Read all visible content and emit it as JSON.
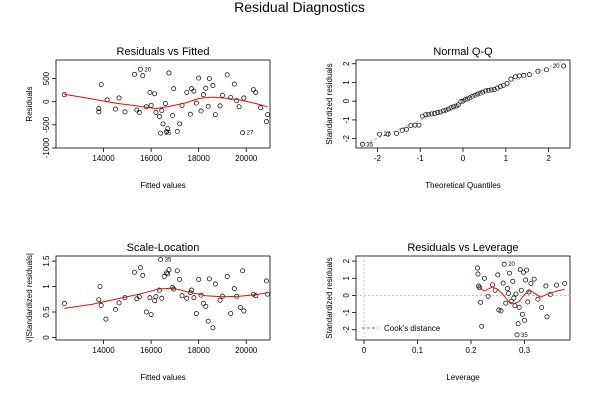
{
  "figure": {
    "title": "Residual Diagnostics"
  },
  "chart_data": [
    {
      "type": "scatter",
      "title": "Residuals vs Fitted",
      "xlabel": "Fitted values",
      "ylabel": "Residuals",
      "xlim": [
        12000,
        21000
      ],
      "ylim": [
        -1000,
        900
      ],
      "xticks": [
        14000,
        16000,
        18000,
        20000
      ],
      "yticks": [
        -1000,
        -500,
        0,
        500
      ],
      "grid": false,
      "points": [
        [
          12350,
          150
        ],
        [
          13800,
          -150
        ],
        [
          13800,
          -220
        ],
        [
          13900,
          370
        ],
        [
          14150,
          40
        ],
        [
          14500,
          -160
        ],
        [
          14650,
          80
        ],
        [
          14900,
          -220
        ],
        [
          15300,
          590
        ],
        [
          15400,
          -180
        ],
        [
          15500,
          -230
        ],
        [
          15550,
          700
        ],
        [
          15650,
          560
        ],
        [
          15800,
          -110
        ],
        [
          15950,
          200
        ],
        [
          16000,
          -80
        ],
        [
          16150,
          170
        ],
        [
          16200,
          -230
        ],
        [
          16350,
          -320
        ],
        [
          16400,
          -680
        ],
        [
          16450,
          -190
        ],
        [
          16500,
          -480
        ],
        [
          16600,
          -40
        ],
        [
          16650,
          -650
        ],
        [
          16700,
          -580
        ],
        [
          16750,
          620
        ],
        [
          16900,
          -300
        ],
        [
          16950,
          280
        ],
        [
          17100,
          -640
        ],
        [
          17200,
          -480
        ],
        [
          17300,
          -80
        ],
        [
          17500,
          200
        ],
        [
          17650,
          -270
        ],
        [
          17700,
          280
        ],
        [
          17800,
          230
        ],
        [
          17900,
          -30
        ],
        [
          18000,
          510
        ],
        [
          18100,
          -200
        ],
        [
          18200,
          150
        ],
        [
          18300,
          290
        ],
        [
          18400,
          -100
        ],
        [
          18450,
          500
        ],
        [
          18600,
          350
        ],
        [
          18700,
          -280
        ],
        [
          18900,
          -90
        ],
        [
          19000,
          140
        ],
        [
          19200,
          580
        ],
        [
          19350,
          90
        ],
        [
          19500,
          380
        ],
        [
          19600,
          20
        ],
        [
          19700,
          -110
        ],
        [
          19850,
          -670
        ],
        [
          19900,
          80
        ],
        [
          20300,
          260
        ],
        [
          20400,
          200
        ],
        [
          20600,
          -130
        ],
        [
          20850,
          -430
        ],
        [
          20900,
          -280
        ]
      ],
      "smooth_line": [
        [
          12350,
          160
        ],
        [
          13500,
          60
        ],
        [
          14500,
          -30
        ],
        [
          15500,
          -100
        ],
        [
          16200,
          -150
        ],
        [
          16800,
          -100
        ],
        [
          17500,
          -20
        ],
        [
          18000,
          70
        ],
        [
          18600,
          100
        ],
        [
          19200,
          70
        ],
        [
          19800,
          30
        ],
        [
          20400,
          -40
        ],
        [
          20900,
          -110
        ]
      ],
      "labeled_points": [
        {
          "label": "20",
          "x": 15550,
          "y": 700
        },
        {
          "label": "35",
          "x": 16400,
          "y": -680
        },
        {
          "label": "27",
          "x": 19850,
          "y": -670
        }
      ]
    },
    {
      "type": "scatter",
      "title": "Normal Q-Q",
      "xlabel": "Theoretical Quantiles",
      "ylabel": "Standardized residuals",
      "xlim": [
        -2.5,
        2.5
      ],
      "ylim": [
        -2.5,
        2.2
      ],
      "xticks": [
        -2,
        -1,
        0,
        1,
        2
      ],
      "yticks": [
        -2,
        -1,
        0,
        1,
        2
      ],
      "grid": false,
      "points": [
        [
          -2.35,
          -2.3
        ],
        [
          -1.95,
          -1.76
        ],
        [
          -1.75,
          -1.76
        ],
        [
          -1.55,
          -1.72
        ],
        [
          -1.42,
          -1.55
        ],
        [
          -1.32,
          -1.5
        ],
        [
          -1.22,
          -1.3
        ],
        [
          -1.12,
          -1.28
        ],
        [
          -1.03,
          -1.28
        ],
        [
          -0.95,
          -0.8
        ],
        [
          -0.87,
          -0.72
        ],
        [
          -0.8,
          -0.7
        ],
        [
          -0.73,
          -0.68
        ],
        [
          -0.66,
          -0.65
        ],
        [
          -0.59,
          -0.6
        ],
        [
          -0.53,
          -0.58
        ],
        [
          -0.46,
          -0.52
        ],
        [
          -0.4,
          -0.48
        ],
        [
          -0.34,
          -0.42
        ],
        [
          -0.28,
          -0.35
        ],
        [
          -0.22,
          -0.3
        ],
        [
          -0.16,
          -0.26
        ],
        [
          -0.11,
          -0.2
        ],
        [
          -0.05,
          -0.02
        ],
        [
          0.0,
          0.0
        ],
        [
          0.05,
          0.08
        ],
        [
          0.11,
          0.12
        ],
        [
          0.16,
          0.18
        ],
        [
          0.22,
          0.26
        ],
        [
          0.28,
          0.32
        ],
        [
          0.34,
          0.38
        ],
        [
          0.4,
          0.42
        ],
        [
          0.46,
          0.48
        ],
        [
          0.53,
          0.55
        ],
        [
          0.59,
          0.58
        ],
        [
          0.66,
          0.6
        ],
        [
          0.73,
          0.62
        ],
        [
          0.8,
          0.7
        ],
        [
          0.87,
          0.78
        ],
        [
          0.95,
          0.85
        ],
        [
          1.03,
          0.95
        ],
        [
          1.12,
          1.18
        ],
        [
          1.22,
          1.3
        ],
        [
          1.32,
          1.35
        ],
        [
          1.42,
          1.38
        ],
        [
          1.55,
          1.42
        ],
        [
          1.75,
          1.6
        ],
        [
          1.95,
          1.68
        ],
        [
          2.35,
          1.88
        ]
      ],
      "labeled_points": [
        {
          "label": "35",
          "x": -2.35,
          "y": -2.3
        },
        {
          "label": "27",
          "x": -1.95,
          "y": -1.76
        },
        {
          "label": "20",
          "x": 2.35,
          "y": 1.88
        }
      ]
    },
    {
      "type": "scatter",
      "title": "Scale-Location",
      "xlabel": "Fitted values",
      "ylabel": "√|Standardized residuals|",
      "xlim": [
        12000,
        21000
      ],
      "ylim": [
        -0.05,
        1.6
      ],
      "xticks": [
        14000,
        16000,
        18000,
        20000
      ],
      "yticks": [
        0.0,
        0.5,
        1.0,
        1.5
      ],
      "grid": false,
      "points": [
        [
          12350,
          0.67
        ],
        [
          13800,
          0.74
        ],
        [
          13850,
          1.0
        ],
        [
          13900,
          0.63
        ],
        [
          14100,
          0.36
        ],
        [
          14500,
          0.55
        ],
        [
          14650,
          0.68
        ],
        [
          14900,
          0.78
        ],
        [
          15300,
          1.28
        ],
        [
          15400,
          0.76
        ],
        [
          15500,
          0.8
        ],
        [
          15550,
          1.37
        ],
        [
          15650,
          1.22
        ],
        [
          15800,
          0.5
        ],
        [
          15950,
          0.78
        ],
        [
          16000,
          0.45
        ],
        [
          16150,
          0.72
        ],
        [
          16200,
          0.8
        ],
        [
          16350,
          0.93
        ],
        [
          16400,
          1.53
        ],
        [
          16450,
          0.77
        ],
        [
          16550,
          1.2
        ],
        [
          16650,
          1.27
        ],
        [
          16700,
          1.25
        ],
        [
          16750,
          1.33
        ],
        [
          16900,
          0.98
        ],
        [
          16950,
          0.95
        ],
        [
          17100,
          1.31
        ],
        [
          17200,
          1.14
        ],
        [
          17300,
          0.82
        ],
        [
          17500,
          0.77
        ],
        [
          17650,
          0.88
        ],
        [
          17700,
          0.93
        ],
        [
          17800,
          0.78
        ],
        [
          17900,
          0.47
        ],
        [
          18000,
          1.14
        ],
        [
          18100,
          0.83
        ],
        [
          18200,
          0.67
        ],
        [
          18300,
          0.61
        ],
        [
          18400,
          0.32
        ],
        [
          18450,
          1.15
        ],
        [
          18600,
          0.19
        ],
        [
          18700,
          1.05
        ],
        [
          18900,
          0.73
        ],
        [
          19000,
          0.81
        ],
        [
          19200,
          1.2
        ],
        [
          19350,
          0.47
        ],
        [
          19500,
          0.96
        ],
        [
          19600,
          0.81
        ],
        [
          19750,
          0.59
        ],
        [
          19850,
          1.31
        ],
        [
          19900,
          0.52
        ],
        [
          20300,
          0.85
        ],
        [
          20400,
          0.82
        ],
        [
          20850,
          1.11
        ],
        [
          20900,
          0.85
        ]
      ],
      "smooth_line": [
        [
          12350,
          0.57
        ],
        [
          13500,
          0.65
        ],
        [
          14500,
          0.75
        ],
        [
          15500,
          0.85
        ],
        [
          16300,
          0.95
        ],
        [
          16900,
          0.97
        ],
        [
          17500,
          0.9
        ],
        [
          18300,
          0.82
        ],
        [
          19000,
          0.8
        ],
        [
          19700,
          0.81
        ],
        [
          20400,
          0.84
        ],
        [
          20900,
          0.88
        ]
      ],
      "labeled_points": [
        {
          "label": "35",
          "x": 16400,
          "y": 1.53
        }
      ]
    },
    {
      "type": "scatter",
      "title": "Residuals vs Leverage",
      "xlabel": "Leverage",
      "ylabel": "Standardized residuals",
      "xlim": [
        -0.015,
        0.385
      ],
      "ylim": [
        -2.6,
        2.3
      ],
      "xticks": [
        0.0,
        0.1,
        0.2,
        0.3
      ],
      "yticks": [
        -2,
        -1,
        0,
        1,
        2
      ],
      "grid": false,
      "reference_lines": {
        "horizontal": 0,
        "vertical": 0
      },
      "legend": {
        "position": "bottom-left",
        "entries": [
          "Cook's distance"
        ]
      },
      "points": [
        [
          0.212,
          1.6
        ],
        [
          0.213,
          1.25
        ],
        [
          0.214,
          0.55
        ],
        [
          0.216,
          0.45
        ],
        [
          0.218,
          -0.4
        ],
        [
          0.22,
          -1.8
        ],
        [
          0.225,
          1.0
        ],
        [
          0.232,
          -0.05
        ],
        [
          0.24,
          0.62
        ],
        [
          0.245,
          0.3
        ],
        [
          0.25,
          1.2
        ],
        [
          0.252,
          -0.85
        ],
        [
          0.256,
          -0.9
        ],
        [
          0.26,
          0.72
        ],
        [
          0.262,
          1.82
        ],
        [
          0.265,
          -0.45
        ],
        [
          0.268,
          0.4
        ],
        [
          0.27,
          0.12
        ],
        [
          0.272,
          1.3
        ],
        [
          0.275,
          -0.35
        ],
        [
          0.278,
          0.82
        ],
        [
          0.28,
          -0.15
        ],
        [
          0.282,
          -0.6
        ],
        [
          0.284,
          0.08
        ],
        [
          0.286,
          -2.3
        ],
        [
          0.288,
          -1.65
        ],
        [
          0.29,
          -0.7
        ],
        [
          0.292,
          1.5
        ],
        [
          0.294,
          0.3
        ],
        [
          0.296,
          -1.1
        ],
        [
          0.298,
          1.35
        ],
        [
          0.3,
          -1.45
        ],
        [
          0.302,
          0.9
        ],
        [
          0.304,
          1.48
        ],
        [
          0.306,
          -0.38
        ],
        [
          0.308,
          0.2
        ],
        [
          0.312,
          0.7
        ],
        [
          0.318,
          0.95
        ],
        [
          0.325,
          -0.22
        ],
        [
          0.332,
          -0.7
        ],
        [
          0.34,
          0.55
        ],
        [
          0.342,
          -1.25
        ],
        [
          0.348,
          0.05
        ],
        [
          0.36,
          0.6
        ],
        [
          0.375,
          0.7
        ]
      ],
      "smooth_line": [
        [
          0.212,
          0.55
        ],
        [
          0.225,
          0.25
        ],
        [
          0.24,
          0.5
        ],
        [
          0.25,
          0.35
        ],
        [
          0.26,
          0.05
        ],
        [
          0.27,
          -0.35
        ],
        [
          0.28,
          -0.5
        ],
        [
          0.29,
          -0.35
        ],
        [
          0.3,
          0.05
        ],
        [
          0.31,
          0.3
        ],
        [
          0.32,
          0.1
        ],
        [
          0.33,
          -0.1
        ],
        [
          0.345,
          0.1
        ],
        [
          0.36,
          0.25
        ],
        [
          0.375,
          0.35
        ]
      ],
      "labeled_points": [
        {
          "label": "20",
          "x": 0.262,
          "y": 1.82
        },
        {
          "label": "35",
          "x": 0.286,
          "y": -2.3
        }
      ]
    }
  ]
}
